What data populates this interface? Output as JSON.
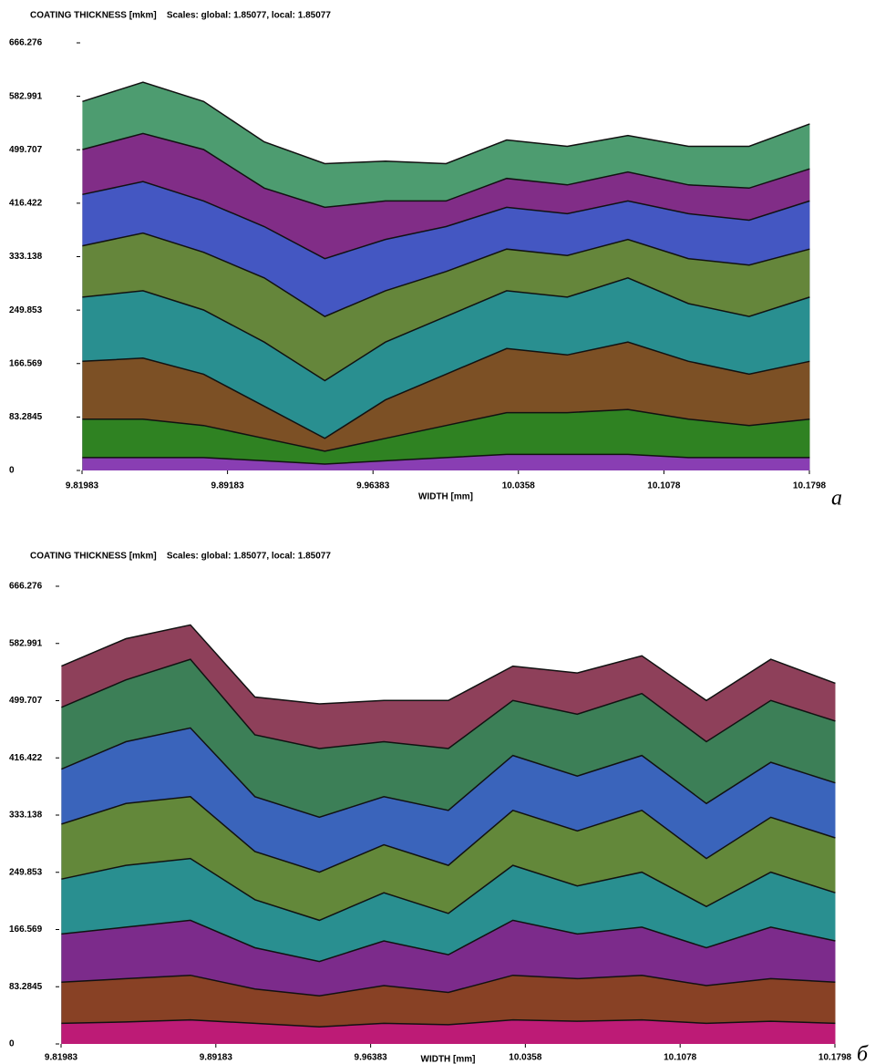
{
  "chart_data": [
    {
      "type": "area",
      "title": "COATING THICKNESS [mkm]    Scales: global: 1.85077, local: 1.85077",
      "xlabel": "WIDTH [mm]",
      "panel_label": "а",
      "xlim": [
        9.81983,
        10.1798
      ],
      "xticks": [
        9.81983,
        9.89183,
        9.96383,
        10.0358,
        10.1078,
        10.1798
      ],
      "ylim": [
        0,
        666.276
      ],
      "yticks": [
        0,
        83.2845,
        166.569,
        249.853,
        333.138,
        416.422,
        499.707,
        582.991,
        666.276
      ],
      "x": [
        9.82,
        9.85,
        9.88,
        9.91,
        9.94,
        9.97,
        10.0,
        10.03,
        10.06,
        10.09,
        10.12,
        10.15,
        10.18
      ],
      "series": [
        {
          "color": "#2e8b57",
          "values": [
            575,
            605,
            575,
            512,
            478,
            482,
            478,
            515,
            505,
            522,
            505,
            505,
            540
          ]
        },
        {
          "color": "#8b1a8b",
          "values": [
            500,
            525,
            500,
            440,
            410,
            420,
            420,
            455,
            445,
            465,
            445,
            440,
            470
          ]
        },
        {
          "color": "#3a5fcd",
          "values": [
            430,
            450,
            420,
            380,
            330,
            360,
            380,
            410,
            400,
            420,
            400,
            390,
            420
          ]
        },
        {
          "color": "#6b8e23",
          "values": [
            350,
            370,
            340,
            300,
            240,
            280,
            310,
            345,
            335,
            360,
            330,
            320,
            345
          ]
        },
        {
          "color": "#1e90a0",
          "values": [
            270,
            280,
            250,
            200,
            140,
            200,
            240,
            280,
            270,
            300,
            260,
            240,
            270
          ]
        },
        {
          "color": "#8b4513",
          "values": [
            170,
            175,
            150,
            100,
            50,
            110,
            150,
            190,
            180,
            200,
            170,
            150,
            170
          ]
        },
        {
          "color": "#228b22",
          "values": [
            80,
            80,
            70,
            50,
            30,
            50,
            70,
            90,
            90,
            95,
            80,
            70,
            80
          ]
        },
        {
          "color": "#9932cc",
          "values": [
            20,
            20,
            20,
            15,
            10,
            15,
            20,
            25,
            25,
            25,
            20,
            20,
            20
          ]
        }
      ]
    },
    {
      "type": "area",
      "title": "COATING THICKNESS [mkm]    Scales: global: 1.85077, local: 1.85077",
      "xlabel": "WIDTH [mm]",
      "panel_label": "б",
      "xlim": [
        9.81983,
        10.1798
      ],
      "xticks": [
        9.81983,
        9.89183,
        9.96383,
        10.0358,
        10.1078,
        10.1798
      ],
      "ylim": [
        0,
        666.276
      ],
      "yticks": [
        0,
        83.2845,
        166.569,
        249.853,
        333.138,
        416.422,
        499.707,
        582.991,
        666.276
      ],
      "x": [
        9.82,
        9.85,
        9.88,
        9.91,
        9.94,
        9.97,
        10.0,
        10.03,
        10.06,
        10.09,
        10.12,
        10.15,
        10.18
      ],
      "series": [
        {
          "color": "#7a1f3d",
          "values": [
            550,
            590,
            610,
            505,
            495,
            500,
            500,
            550,
            540,
            565,
            500,
            560,
            525
          ]
        },
        {
          "color": "#2e8b57",
          "values": [
            490,
            530,
            560,
            450,
            430,
            440,
            430,
            500,
            480,
            510,
            440,
            500,
            470
          ]
        },
        {
          "color": "#3a5fcd",
          "values": [
            400,
            440,
            460,
            360,
            330,
            360,
            340,
            420,
            390,
            420,
            350,
            410,
            380
          ]
        },
        {
          "color": "#6b8e23",
          "values": [
            320,
            350,
            360,
            280,
            250,
            290,
            260,
            340,
            310,
            340,
            270,
            330,
            300
          ]
        },
        {
          "color": "#1e90a0",
          "values": [
            240,
            260,
            270,
            210,
            180,
            220,
            190,
            260,
            230,
            250,
            200,
            250,
            220
          ]
        },
        {
          "color": "#8b1a8b",
          "values": [
            160,
            170,
            180,
            140,
            120,
            150,
            130,
            180,
            160,
            170,
            140,
            170,
            150
          ]
        },
        {
          "color": "#8b4513",
          "values": [
            90,
            95,
            100,
            80,
            70,
            85,
            75,
            100,
            95,
            100,
            85,
            95,
            90
          ]
        },
        {
          "color": "#c71585",
          "values": [
            30,
            32,
            35,
            30,
            25,
            30,
            28,
            35,
            33,
            35,
            30,
            33,
            30
          ]
        }
      ]
    }
  ]
}
